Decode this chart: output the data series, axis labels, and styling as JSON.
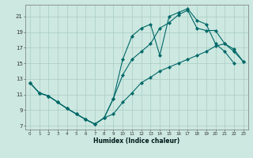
{
  "xlabel": "Humidex (Indice chaleur)",
  "bg_color": "#cce8e0",
  "grid_color": "#aaccc4",
  "line_color": "#006868",
  "xlim": [
    -0.5,
    23.5
  ],
  "ylim": [
    6.5,
    22.5
  ],
  "xticks": [
    0,
    1,
    2,
    3,
    4,
    5,
    6,
    7,
    8,
    9,
    10,
    11,
    12,
    13,
    14,
    15,
    16,
    17,
    18,
    19,
    20,
    21,
    22,
    23
  ],
  "yticks": [
    7,
    9,
    11,
    13,
    15,
    17,
    19,
    21
  ],
  "series": [
    {
      "x": [
        0,
        1,
        2,
        3,
        4,
        5,
        6,
        7,
        8,
        9,
        10,
        11,
        12,
        13,
        14,
        15,
        16,
        17,
        18,
        19,
        20,
        21,
        22,
        23
      ],
      "y": [
        12.5,
        11.2,
        10.8,
        10.0,
        9.2,
        8.5,
        7.8,
        7.2,
        8.0,
        10.5,
        15.5,
        18.5,
        19.5,
        20.0,
        16.0,
        21.0,
        21.5,
        22.0,
        20.5,
        20.0,
        17.5,
        16.5,
        15.0,
        null
      ]
    },
    {
      "x": [
        0,
        1,
        2,
        3,
        4,
        5,
        6,
        7,
        8,
        9,
        10,
        11,
        12,
        13,
        14,
        15,
        16,
        17,
        18,
        19,
        20,
        21,
        22,
        23
      ],
      "y": [
        12.5,
        11.2,
        10.8,
        10.0,
        9.2,
        8.5,
        7.8,
        7.2,
        8.0,
        10.5,
        13.5,
        15.5,
        16.5,
        17.5,
        19.5,
        20.2,
        21.2,
        21.8,
        19.5,
        19.2,
        19.2,
        17.5,
        16.8,
        15.2
      ]
    },
    {
      "x": [
        0,
        1,
        2,
        3,
        4,
        5,
        6,
        7,
        8,
        9,
        10,
        11,
        12,
        13,
        14,
        15,
        16,
        17,
        18,
        19,
        20,
        21,
        22,
        23
      ],
      "y": [
        12.5,
        11.2,
        10.8,
        10.0,
        9.2,
        8.5,
        7.8,
        7.2,
        8.0,
        8.5,
        10.0,
        11.2,
        12.5,
        13.2,
        14.0,
        14.5,
        15.0,
        15.5,
        16.0,
        16.5,
        17.2,
        17.5,
        16.5,
        15.2
      ]
    }
  ]
}
